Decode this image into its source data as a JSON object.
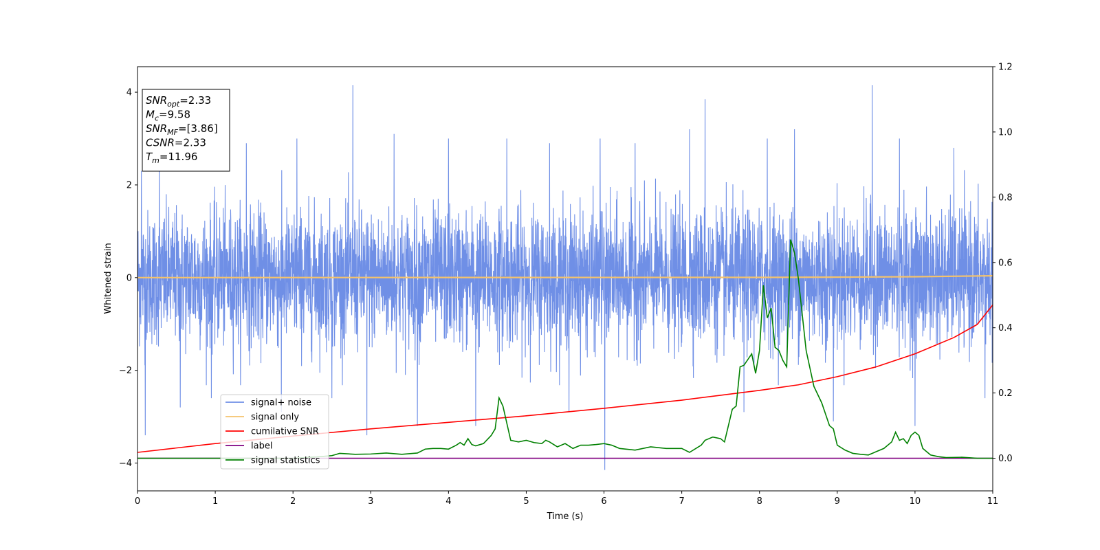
{
  "chart_data": {
    "type": "line",
    "xlabel": "Time (s)",
    "ylabel": "Whitened strain",
    "xlim": [
      0,
      11
    ],
    "ylim_left": [
      -4.6,
      4.55
    ],
    "ylim_right": [
      -0.1,
      1.2
    ],
    "x_ticks": [
      0,
      1,
      2,
      3,
      4,
      5,
      6,
      7,
      8,
      9,
      10,
      11
    ],
    "y_left_ticks": [
      -4,
      -2,
      0,
      2,
      4
    ],
    "y_right_ticks": [
      "0.0",
      "0.2",
      "0.4",
      "0.6",
      "0.8",
      "1.0",
      "1.2"
    ],
    "legend_position": "lower-left",
    "annotation": [
      {
        "sym": "SNR",
        "sub": "opt",
        "value": "=2.33"
      },
      {
        "sym": "M",
        "sub": "c",
        "value": "=9.58"
      },
      {
        "sym": "SNR",
        "sub": "MF",
        "value": "=[3.86]"
      },
      {
        "sym": "CSNR",
        "sub": "",
        "value": "=2.33"
      },
      {
        "sym": "T",
        "sub": "m",
        "value": "=11.96"
      }
    ],
    "series": [
      {
        "name": "signal+ noise",
        "color": "#6f8fe6",
        "axis": "left",
        "kind": "noise",
        "envelope": [
          -1.6,
          1.6
        ],
        "spikes": [
          [
            0.05,
            2.3
          ],
          [
            0.1,
            -3.4
          ],
          [
            0.28,
            2.6
          ],
          [
            0.55,
            -2.8
          ],
          [
            0.95,
            -2.6
          ],
          [
            1.4,
            2.9
          ],
          [
            1.85,
            -2.9
          ],
          [
            2.05,
            3.0
          ],
          [
            2.5,
            -2.6
          ],
          [
            2.77,
            4.15
          ],
          [
            2.95,
            -3.4
          ],
          [
            3.3,
            3.1
          ],
          [
            3.6,
            -3.2
          ],
          [
            4.0,
            3.0
          ],
          [
            4.35,
            -3.2
          ],
          [
            4.75,
            3.0
          ],
          [
            5.3,
            2.9
          ],
          [
            5.55,
            -2.9
          ],
          [
            5.95,
            3.0
          ],
          [
            6.01,
            -4.15
          ],
          [
            6.4,
            2.9
          ],
          [
            7.1,
            3.2
          ],
          [
            7.3,
            3.85
          ],
          [
            7.8,
            -2.9
          ],
          [
            8.1,
            3.0
          ],
          [
            8.45,
            3.2
          ],
          [
            8.95,
            -3.1
          ],
          [
            9.45,
            4.15
          ],
          [
            9.8,
            3.0
          ],
          [
            10.0,
            -3.2
          ],
          [
            10.5,
            2.8
          ],
          [
            10.9,
            -2.6
          ]
        ]
      },
      {
        "name": "signal only",
        "color": "#f5c36b",
        "axis": "left",
        "x": [
          0,
          8,
          9,
          10,
          10.5,
          11
        ],
        "y": [
          0,
          0.005,
          0.01,
          0.02,
          0.03,
          0.04
        ]
      },
      {
        "name": "cumilative SNR",
        "color": "#ff0000",
        "axis": "right",
        "x": [
          0,
          1,
          2,
          3,
          4,
          5,
          6,
          7,
          7.5,
          8,
          8.5,
          9,
          9.5,
          10,
          10.5,
          10.8,
          11
        ],
        "y": [
          0.018,
          0.045,
          0.068,
          0.09,
          0.11,
          0.13,
          0.153,
          0.178,
          0.193,
          0.208,
          0.225,
          0.25,
          0.28,
          0.32,
          0.37,
          0.41,
          0.47
        ]
      },
      {
        "name": "label",
        "color": "#800080",
        "axis": "right",
        "x": [
          0,
          11
        ],
        "y": [
          0,
          0
        ]
      },
      {
        "name": "signal statistics",
        "color": "#008000",
        "axis": "right",
        "x": [
          0,
          0.5,
          1.0,
          1.5,
          2.0,
          2.3,
          2.5,
          2.6,
          2.8,
          3.0,
          3.2,
          3.4,
          3.6,
          3.7,
          3.8,
          3.9,
          4.0,
          4.1,
          4.15,
          4.2,
          4.25,
          4.3,
          4.35,
          4.45,
          4.55,
          4.6,
          4.65,
          4.7,
          4.8,
          4.9,
          5.0,
          5.1,
          5.2,
          5.25,
          5.3,
          5.4,
          5.5,
          5.6,
          5.7,
          5.8,
          5.9,
          6.0,
          6.1,
          6.2,
          6.4,
          6.6,
          6.8,
          7.0,
          7.1,
          7.25,
          7.3,
          7.4,
          7.5,
          7.55,
          7.65,
          7.7,
          7.75,
          7.8,
          7.9,
          7.95,
          8.0,
          8.05,
          8.1,
          8.15,
          8.2,
          8.25,
          8.3,
          8.35,
          8.4,
          8.45,
          8.5,
          8.55,
          8.6,
          8.7,
          8.8,
          8.9,
          8.95,
          9.0,
          9.1,
          9.2,
          9.3,
          9.4,
          9.5,
          9.6,
          9.7,
          9.75,
          9.8,
          9.85,
          9.9,
          9.95,
          10.0,
          10.05,
          10.1,
          10.2,
          10.3,
          10.4,
          10.6,
          10.8,
          11.0
        ],
        "y": [
          0.0,
          0.0,
          0.0,
          0.0,
          0.0,
          0.004,
          0.008,
          0.015,
          0.012,
          0.013,
          0.016,
          0.012,
          0.016,
          0.028,
          0.03,
          0.03,
          0.028,
          0.04,
          0.048,
          0.04,
          0.06,
          0.042,
          0.038,
          0.045,
          0.07,
          0.09,
          0.185,
          0.16,
          0.055,
          0.05,
          0.055,
          0.048,
          0.045,
          0.055,
          0.05,
          0.035,
          0.045,
          0.03,
          0.04,
          0.04,
          0.042,
          0.045,
          0.04,
          0.03,
          0.025,
          0.035,
          0.03,
          0.03,
          0.018,
          0.04,
          0.055,
          0.065,
          0.06,
          0.05,
          0.15,
          0.16,
          0.28,
          0.285,
          0.32,
          0.26,
          0.33,
          0.53,
          0.43,
          0.46,
          0.34,
          0.33,
          0.3,
          0.28,
          0.67,
          0.63,
          0.55,
          0.44,
          0.33,
          0.22,
          0.17,
          0.1,
          0.09,
          0.04,
          0.025,
          0.015,
          0.012,
          0.01,
          0.02,
          0.03,
          0.05,
          0.08,
          0.055,
          0.06,
          0.045,
          0.07,
          0.08,
          0.07,
          0.03,
          0.01,
          0.005,
          0.002,
          0.003,
          0.0,
          0.0
        ]
      }
    ]
  }
}
